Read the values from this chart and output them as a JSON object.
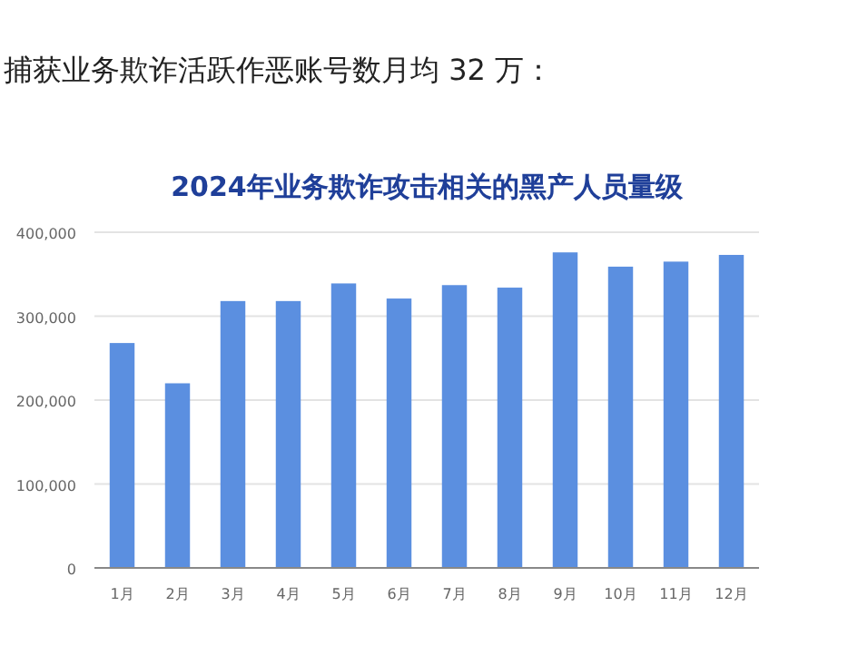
{
  "chart_data": {
    "type": "bar",
    "title": "2024年业务欺诈攻击相关的黑产人员量级",
    "annotations": [
      "捕获业务欺诈活跃作恶账号数月均 32 万："
    ],
    "categories": [
      "1月",
      "2月",
      "3月",
      "4月",
      "5月",
      "6月",
      "7月",
      "8月",
      "9月",
      "10月",
      "11月",
      "12月"
    ],
    "values": [
      268000,
      220000,
      318000,
      318000,
      339000,
      321000,
      337000,
      334000,
      376000,
      359000,
      365000,
      373000
    ],
    "color": "#5b8fe0",
    "ylim": [
      0,
      400000
    ],
    "yticks": [
      0,
      {
        "value": 100000,
        "label": "100,000"
      },
      {
        "value": 200000,
        "label": "200,000"
      },
      {
        "value": 300000,
        "label": "300,000"
      },
      {
        "value": 400000,
        "label": "400,000"
      }
    ],
    "grid": "y"
  }
}
